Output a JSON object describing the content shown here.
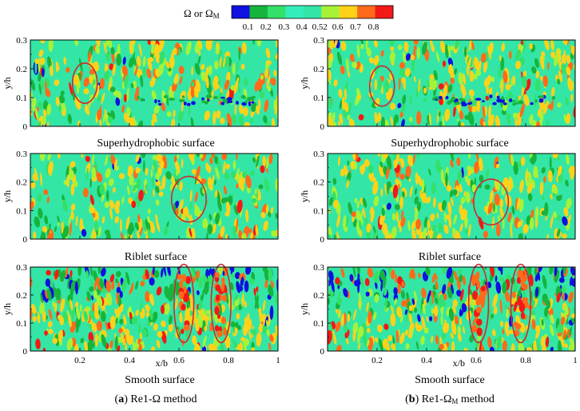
{
  "colorbar": {
    "label_main": "Ω or Ω",
    "label_sub": "M",
    "levels": [
      "0.1",
      "0.2",
      "0.3",
      "0.4",
      "0.52",
      "0.6",
      "0.7",
      "0.8"
    ],
    "colors": [
      "#1010e0",
      "#16b43c",
      "#33e06a",
      "#33eebb",
      "#33e6a6",
      "#a6f238",
      "#ffd21a",
      "#ff6a1a",
      "#f41818"
    ]
  },
  "axes": {
    "y_label": "y/h",
    "x_label": "x/b",
    "y_ticks": [
      "0",
      "0.1",
      "0.2",
      "0.3"
    ],
    "x_ticks": [
      "0.2",
      "0.4",
      "0.6",
      "0.8",
      "1"
    ]
  },
  "background_color": "#33e6a6",
  "highlight_color": "#cc2a33",
  "panels": {
    "a_super": {
      "caption": "Superhydrophobic surface"
    },
    "a_riblet": {
      "caption": "Riblet surface"
    },
    "a_smooth": {
      "caption": "Smooth surface"
    },
    "b_super": {
      "caption": "Superhydrophobic surface"
    },
    "b_riblet": {
      "caption": "Riblet surface"
    },
    "b_smooth": {
      "caption": "Smooth surface"
    }
  },
  "column_labels": {
    "a": {
      "letter": "a",
      "text": ") Re1-Ω method"
    },
    "b": {
      "letter": "b",
      "text": ") Re1-Ω",
      "sub": "M",
      "tail": " method"
    }
  },
  "chart_data": [
    {
      "type": "heatmap",
      "panel": "a_super",
      "title": "Superhydrophobic surface",
      "xlabel": "",
      "ylabel": "y/h",
      "xlim": [
        0,
        1
      ],
      "ylim": [
        0,
        0.3
      ],
      "features": {
        "low_band_y": 0.09,
        "low_band_x": [
          0.4,
          0.93
        ]
      },
      "highlights": [
        {
          "shape": "ellipse",
          "cx": 0.22,
          "cy": 0.15,
          "rx": 0.05,
          "ry": 0.07
        }
      ]
    },
    {
      "type": "heatmap",
      "panel": "a_riblet",
      "title": "Riblet surface",
      "xlabel": "",
      "ylabel": "y/h",
      "xlim": [
        0,
        1
      ],
      "ylim": [
        0,
        0.3
      ],
      "highlights": [
        {
          "shape": "ellipse",
          "cx": 0.64,
          "cy": 0.14,
          "rx": 0.07,
          "ry": 0.08
        }
      ]
    },
    {
      "type": "heatmap",
      "panel": "a_smooth",
      "title": "Smooth surface",
      "xlabel": "x/b",
      "ylabel": "y/h",
      "xlim": [
        0,
        1
      ],
      "ylim": [
        0,
        0.3
      ],
      "features": {
        "strong_top_region": true
      },
      "highlights": [
        {
          "shape": "ellipse",
          "cx": 0.62,
          "cy": 0.17,
          "rx": 0.04,
          "ry": 0.14
        },
        {
          "shape": "ellipse",
          "cx": 0.77,
          "cy": 0.17,
          "rx": 0.04,
          "ry": 0.14
        }
      ]
    },
    {
      "type": "heatmap",
      "panel": "b_super",
      "title": "Superhydrophobic surface",
      "xlabel": "",
      "ylabel": "",
      "xlim": [
        0,
        1
      ],
      "ylim": [
        0,
        0.3
      ],
      "features": {
        "low_band_y": 0.09,
        "low_band_x": [
          0.4,
          0.93
        ]
      },
      "highlights": [
        {
          "shape": "ellipse",
          "cx": 0.22,
          "cy": 0.14,
          "rx": 0.05,
          "ry": 0.07
        }
      ]
    },
    {
      "type": "heatmap",
      "panel": "b_riblet",
      "title": "Riblet surface",
      "xlabel": "",
      "ylabel": "",
      "xlim": [
        0,
        1
      ],
      "ylim": [
        0,
        0.3
      ],
      "highlights": [
        {
          "shape": "ellipse",
          "cx": 0.66,
          "cy": 0.13,
          "rx": 0.07,
          "ry": 0.08
        }
      ]
    },
    {
      "type": "heatmap",
      "panel": "b_smooth",
      "title": "Smooth surface",
      "xlabel": "x/b",
      "ylabel": "",
      "xlim": [
        0,
        1
      ],
      "ylim": [
        0,
        0.3
      ],
      "features": {
        "strong_top_region": true
      },
      "highlights": [
        {
          "shape": "ellipse",
          "cx": 0.61,
          "cy": 0.17,
          "rx": 0.04,
          "ry": 0.14
        },
        {
          "shape": "ellipse",
          "cx": 0.78,
          "cy": 0.17,
          "rx": 0.04,
          "ry": 0.14
        }
      ]
    }
  ]
}
